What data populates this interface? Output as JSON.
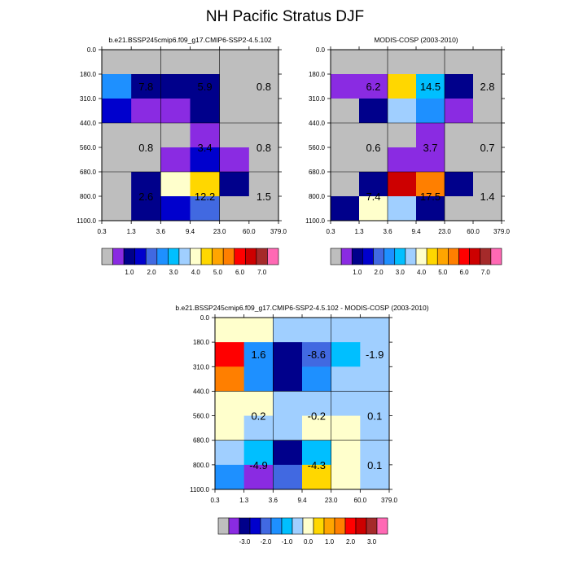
{
  "title": "NH Pacific Stratus DJF",
  "palette": [
    "#bebebe",
    "#8a2be2",
    "#00008b",
    "#0000cd",
    "#4169e1",
    "#1e90ff",
    "#00bfff",
    "#a0cfff",
    "#ffffcc",
    "#ffd700",
    "#ffa500",
    "#ff7f00",
    "#ff0000",
    "#cd0000",
    "#a52a2a",
    "#ff69b4"
  ],
  "chart_data": [
    {
      "type": "heatmap",
      "title": "b.e21.BSSP245cmip6.f09_g17.CMIP6-SSP2-4.5.102",
      "x_ticks": [
        "0.3",
        "1.3",
        "3.6",
        "9.4",
        "23.0",
        "60.0",
        "379.0"
      ],
      "y_ticks": [
        "0.0",
        "180.0",
        "310.0",
        "440.0",
        "560.0",
        "680.0",
        "800.0",
        "1100.0"
      ],
      "cells": [
        [
          0,
          0,
          0,
          0,
          0,
          0
        ],
        [
          5,
          2,
          2,
          2,
          0,
          0
        ],
        [
          3,
          1,
          1,
          2,
          0,
          0
        ],
        [
          0,
          0,
          0,
          1,
          0,
          0
        ],
        [
          0,
          0,
          1,
          3,
          1,
          0
        ],
        [
          0,
          2,
          8,
          9,
          2,
          0
        ],
        [
          0,
          2,
          3,
          4,
          0,
          0
        ]
      ],
      "annotations": [
        {
          "label": "7.8",
          "col": 1,
          "row": 1.5
        },
        {
          "label": "5.9",
          "col": 3,
          "row": 1.5
        },
        {
          "label": "0.8",
          "col": 5,
          "row": 1.5
        },
        {
          "label": "0.8",
          "col": 1,
          "row": 4
        },
        {
          "label": "3.4",
          "col": 3,
          "row": 4
        },
        {
          "label": "0.8",
          "col": 5,
          "row": 4
        },
        {
          "label": "2.6",
          "col": 1,
          "row": 6
        },
        {
          "label": "12.2",
          "col": 3,
          "row": 6
        },
        {
          "label": "1.5",
          "col": 5,
          "row": 6
        }
      ],
      "colorbar": {
        "labels": [
          "1.0",
          "2.0",
          "3.0",
          "4.0",
          "5.0",
          "6.0",
          "7.0"
        ]
      }
    },
    {
      "type": "heatmap",
      "title": "MODIS-COSP (2003-2010)",
      "x_ticks": [
        "0.3",
        "1.3",
        "3.6",
        "9.4",
        "23.0",
        "60.0",
        "379.0"
      ],
      "y_ticks": [
        "0.0",
        "180.0",
        "310.0",
        "440.0",
        "560.0",
        "680.0",
        "800.0",
        "1100.0"
      ],
      "cells": [
        [
          0,
          0,
          0,
          0,
          0,
          0
        ],
        [
          1,
          1,
          9,
          6,
          2,
          0
        ],
        [
          0,
          2,
          7,
          5,
          1,
          0
        ],
        [
          0,
          0,
          0,
          1,
          0,
          0
        ],
        [
          0,
          0,
          1,
          1,
          0,
          0
        ],
        [
          0,
          2,
          13,
          11,
          2,
          0
        ],
        [
          2,
          8,
          7,
          2,
          0,
          0
        ]
      ],
      "annotations": [
        {
          "label": "6.2",
          "col": 1,
          "row": 1.5
        },
        {
          "label": "14.5",
          "col": 3,
          "row": 1.5
        },
        {
          "label": "2.8",
          "col": 5,
          "row": 1.5
        },
        {
          "label": "0.6",
          "col": 1,
          "row": 4
        },
        {
          "label": "3.7",
          "col": 3,
          "row": 4
        },
        {
          "label": "0.7",
          "col": 5,
          "row": 4
        },
        {
          "label": "7.4",
          "col": 1,
          "row": 6
        },
        {
          "label": "17.5",
          "col": 3,
          "row": 6
        },
        {
          "label": "1.4",
          "col": 5,
          "row": 6
        }
      ],
      "colorbar": {
        "labels": [
          "1.0",
          "2.0",
          "3.0",
          "4.0",
          "5.0",
          "6.0",
          "7.0"
        ]
      }
    },
    {
      "type": "heatmap",
      "title": "b.e21.BSSP245cmip6.f09_g17.CMIP6-SSP2-4.5.102 - MODIS-COSP (2003-2010)",
      "x_ticks": [
        "0.3",
        "1.3",
        "3.6",
        "9.4",
        "23.0",
        "60.0",
        "379.0"
      ],
      "y_ticks": [
        "0.0",
        "180.0",
        "310.0",
        "440.0",
        "560.0",
        "680.0",
        "800.0",
        "1100.0"
      ],
      "cells": [
        [
          8,
          8,
          7,
          7,
          7,
          7
        ],
        [
          12,
          5,
          2,
          4,
          6,
          7
        ],
        [
          11,
          5,
          2,
          5,
          7,
          7
        ],
        [
          8,
          8,
          7,
          7,
          7,
          7
        ],
        [
          8,
          7,
          7,
          8,
          8,
          7
        ],
        [
          7,
          6,
          2,
          6,
          8,
          7
        ],
        [
          5,
          1,
          4,
          9,
          8,
          7
        ]
      ],
      "annotations": [
        {
          "label": "1.6",
          "col": 1,
          "row": 1.5
        },
        {
          "label": "-8.6",
          "col": 3,
          "row": 1.5
        },
        {
          "label": "-1.9",
          "col": 5,
          "row": 1.5
        },
        {
          "label": "0.2",
          "col": 1,
          "row": 4
        },
        {
          "label": "-0.2",
          "col": 3,
          "row": 4
        },
        {
          "label": "0.1",
          "col": 5,
          "row": 4
        },
        {
          "label": "-4.9",
          "col": 1,
          "row": 6
        },
        {
          "label": "-4.3",
          "col": 3,
          "row": 6
        },
        {
          "label": "0.1",
          "col": 5,
          "row": 6
        }
      ],
      "colorbar": {
        "labels": [
          "-3.0",
          "-2.0",
          "-1.0",
          "0.0",
          "1.0",
          "2.0",
          "3.0"
        ]
      }
    }
  ]
}
